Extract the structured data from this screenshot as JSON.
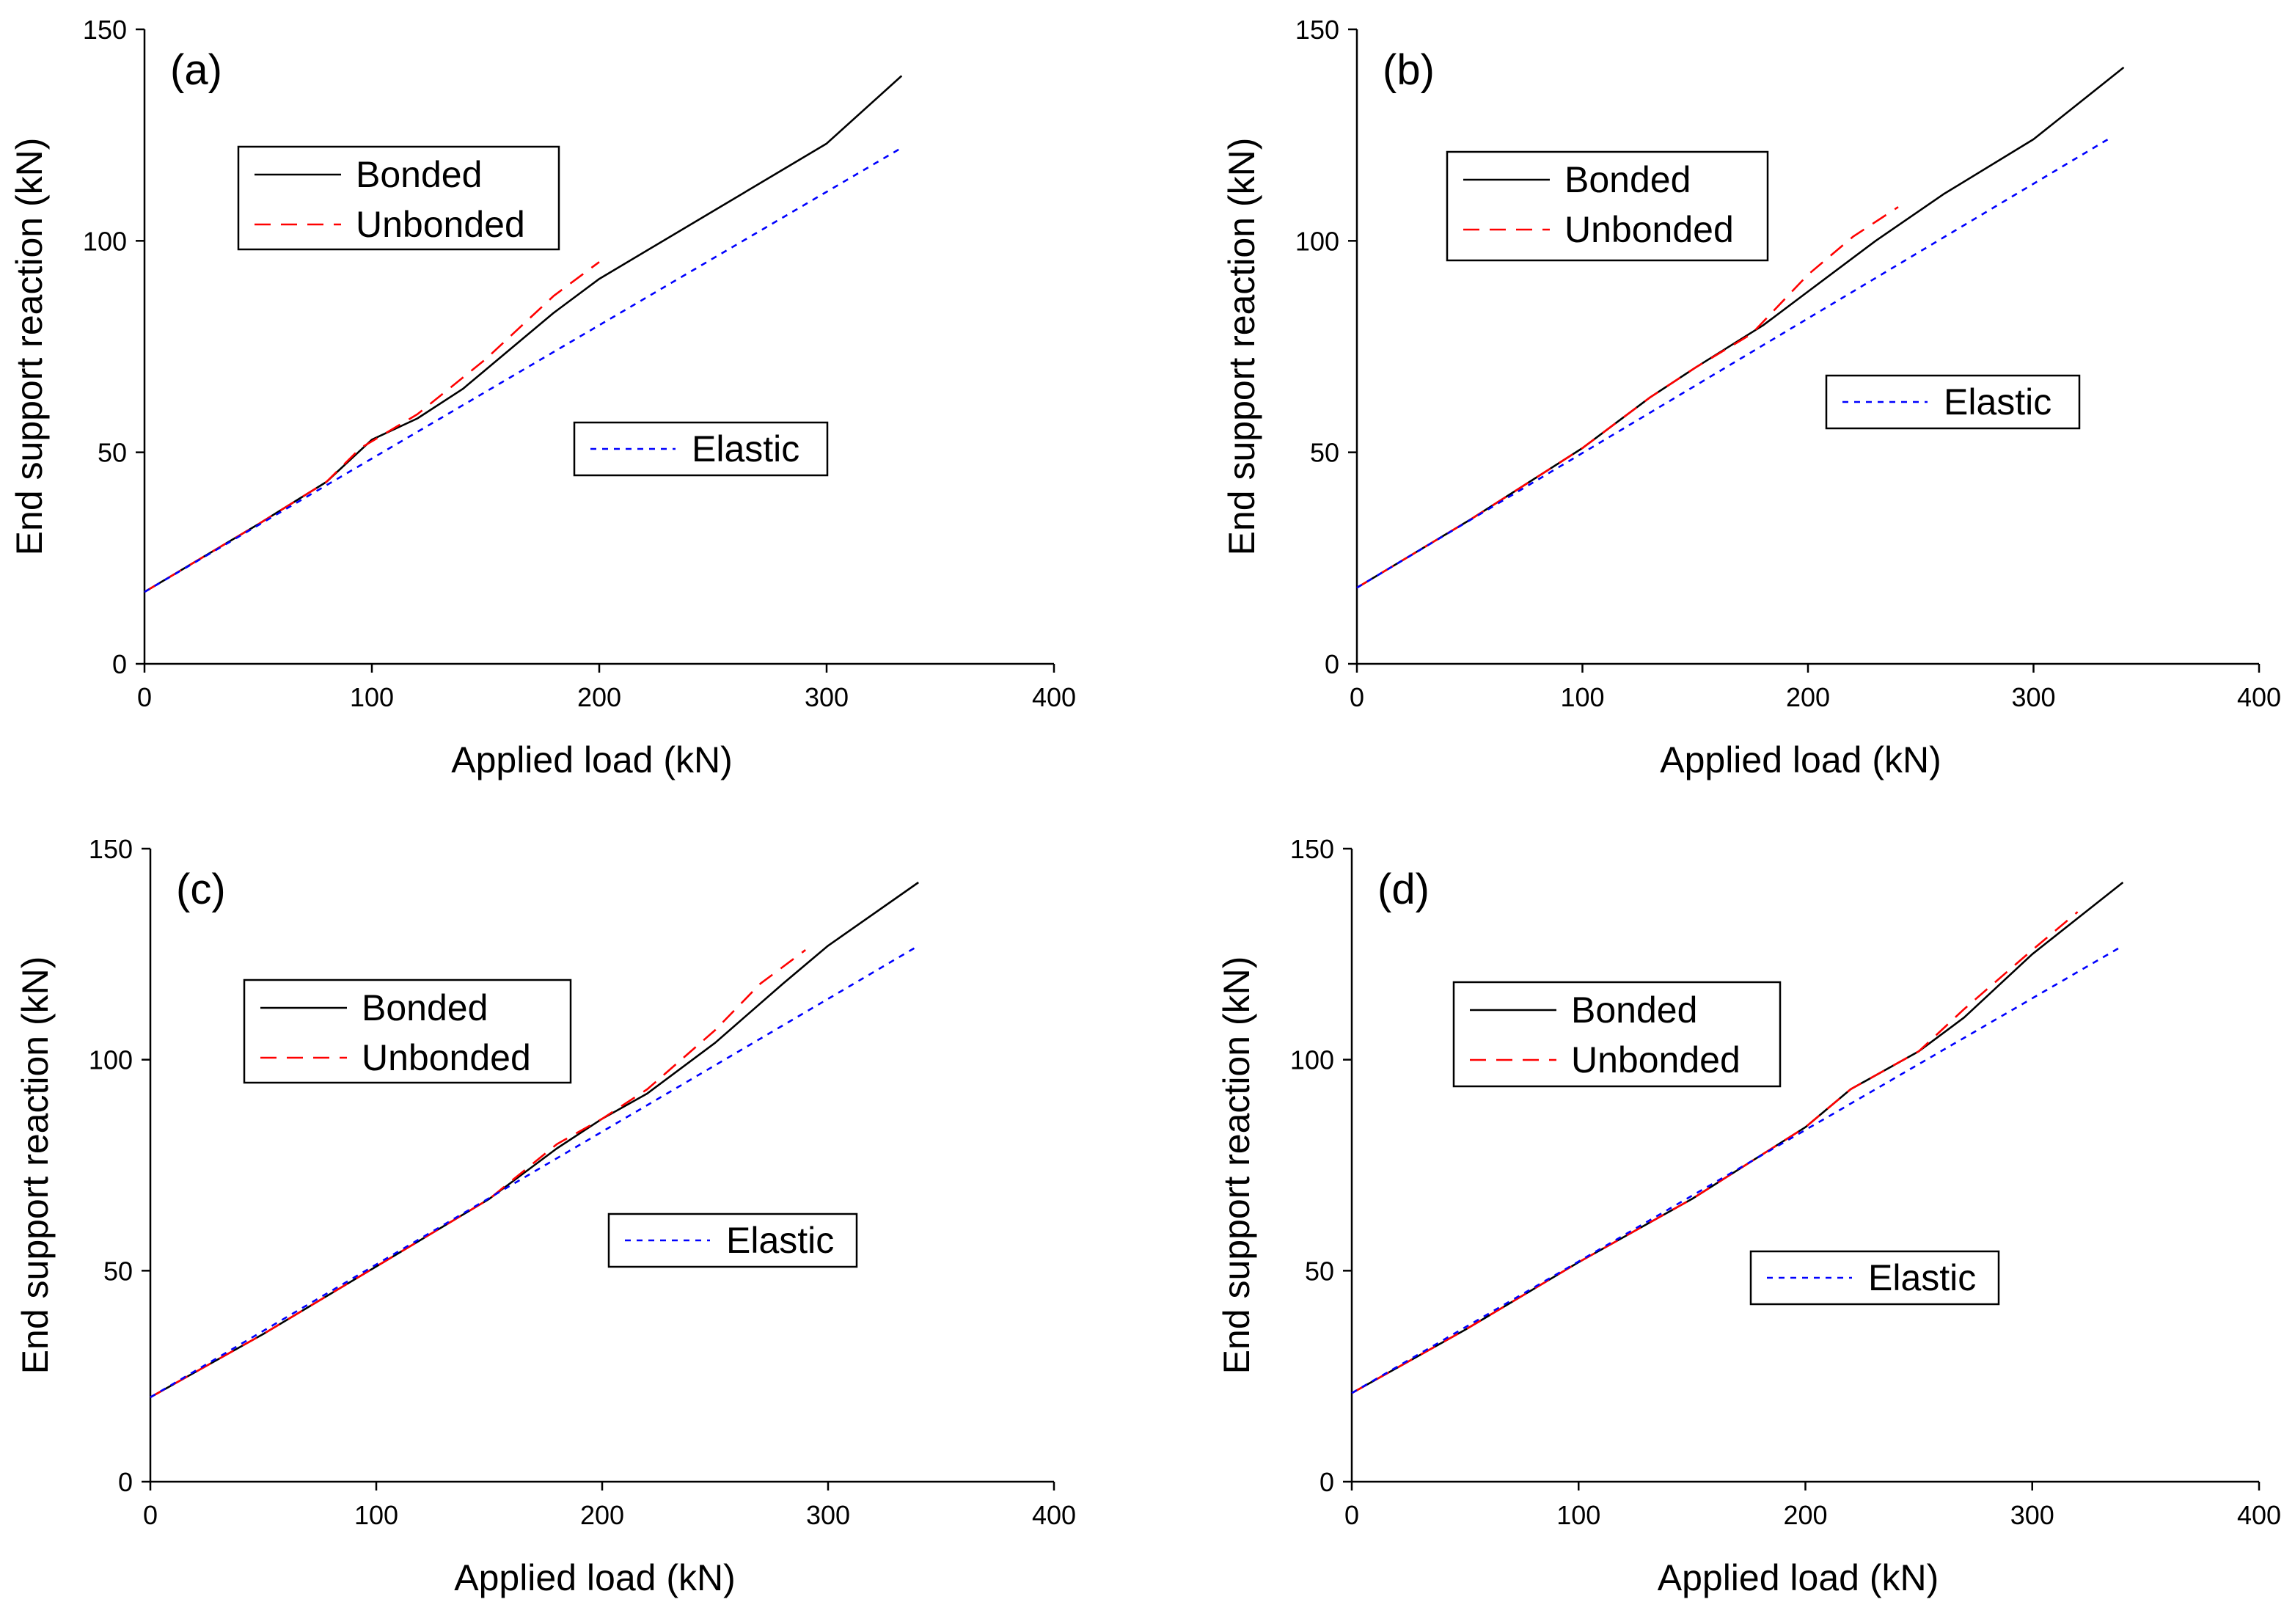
{
  "figure": {
    "style": {
      "bonded_color": "#000000",
      "unbonded_color": "#ff0000",
      "elastic_color": "#0000ff"
    }
  },
  "chart_data": [
    {
      "type": "line",
      "panel_label": "(a)",
      "xlabel": "Applied load (kN)",
      "ylabel": "End support reaction (kN)",
      "xlim": [
        0,
        400
      ],
      "ylim": [
        0,
        150
      ],
      "xticks": [
        0,
        100,
        200,
        300,
        400
      ],
      "yticks": [
        0,
        50,
        100,
        150
      ],
      "legend": [
        "Bonded",
        "Unbonded",
        "Elastic"
      ],
      "series": [
        {
          "name": "Bonded",
          "style": "solid",
          "x": [
            0,
            50,
            80,
            100,
            120,
            140,
            160,
            180,
            200,
            250,
            300,
            333
          ],
          "y": [
            17,
            33,
            43,
            53,
            58,
            65,
            74,
            83,
            91,
            107,
            123,
            139
          ]
        },
        {
          "name": "Unbonded",
          "style": "dashed",
          "x": [
            0,
            50,
            80,
            95,
            120,
            150,
            180,
            200
          ],
          "y": [
            17,
            33,
            43,
            51,
            59,
            72,
            87,
            95
          ]
        },
        {
          "name": "Elastic",
          "style": "dotted",
          "x": [
            0,
            333
          ],
          "y": [
            17,
            122
          ]
        }
      ]
    },
    {
      "type": "line",
      "panel_label": "(b)",
      "xlabel": "Applied load (kN)",
      "ylabel": "End support reaction (kN)",
      "xlim": [
        0,
        400
      ],
      "ylim": [
        0,
        150
      ],
      "xticks": [
        0,
        100,
        200,
        300,
        400
      ],
      "yticks": [
        0,
        50,
        100,
        150
      ],
      "legend": [
        "Bonded",
        "Unbonded",
        "Elastic"
      ],
      "series": [
        {
          "name": "Bonded",
          "style": "solid",
          "x": [
            0,
            50,
            100,
            130,
            150,
            180,
            200,
            230,
            260,
            300,
            340
          ],
          "y": [
            18,
            34,
            51,
            63,
            70,
            80,
            88,
            100,
            111,
            124,
            141
          ]
        },
        {
          "name": "Unbonded",
          "style": "dashed",
          "x": [
            0,
            50,
            100,
            130,
            150,
            175,
            200,
            220,
            240
          ],
          "y": [
            18,
            34,
            51,
            63,
            70,
            78,
            92,
            101,
            108
          ]
        },
        {
          "name": "Elastic",
          "style": "dotted",
          "x": [
            0,
            333
          ],
          "y": [
            18,
            124
          ]
        }
      ]
    },
    {
      "type": "line",
      "panel_label": "(c)",
      "xlabel": "Applied load (kN)",
      "ylabel": "End support reaction (kN)",
      "xlim": [
        0,
        400
      ],
      "ylim": [
        0,
        150
      ],
      "xticks": [
        0,
        100,
        200,
        300,
        400
      ],
      "yticks": [
        0,
        50,
        100,
        150
      ],
      "legend": [
        "Bonded",
        "Unbonded",
        "Elastic"
      ],
      "series": [
        {
          "name": "Bonded",
          "style": "solid",
          "x": [
            0,
            50,
            100,
            150,
            180,
            200,
            220,
            250,
            280,
            300,
            340
          ],
          "y": [
            20,
            35,
            51,
            67,
            79,
            86,
            92,
            104,
            118,
            127,
            142
          ]
        },
        {
          "name": "Unbonded",
          "style": "dashed",
          "x": [
            0,
            50,
            100,
            150,
            180,
            200,
            220,
            250,
            270,
            290
          ],
          "y": [
            20,
            35,
            51,
            67,
            80,
            86,
            93,
            107,
            118,
            126
          ]
        },
        {
          "name": "Elastic",
          "style": "dotted",
          "x": [
            0,
            340
          ],
          "y": [
            20,
            127
          ]
        }
      ]
    },
    {
      "type": "line",
      "panel_label": "(d)",
      "xlabel": "Applied load (kN)",
      "ylabel": "End support reaction (kN)",
      "xlim": [
        0,
        400
      ],
      "ylim": [
        0,
        150
      ],
      "xticks": [
        0,
        100,
        200,
        300,
        400
      ],
      "yticks": [
        0,
        50,
        100,
        150
      ],
      "legend": [
        "Bonded",
        "Unbonded",
        "Elastic"
      ],
      "series": [
        {
          "name": "Bonded",
          "style": "solid",
          "x": [
            0,
            50,
            100,
            150,
            200,
            220,
            250,
            270,
            300,
            340
          ],
          "y": [
            21,
            36,
            52,
            67,
            84,
            93,
            102,
            110,
            125,
            142
          ]
        },
        {
          "name": "Unbonded",
          "style": "dashed",
          "x": [
            0,
            50,
            100,
            150,
            200,
            220,
            250,
            270,
            300,
            320
          ],
          "y": [
            21,
            36,
            52,
            67,
            84,
            93,
            102,
            112,
            126,
            135
          ]
        },
        {
          "name": "Elastic",
          "style": "dotted",
          "x": [
            0,
            340
          ],
          "y": [
            21,
            127
          ]
        }
      ]
    }
  ]
}
